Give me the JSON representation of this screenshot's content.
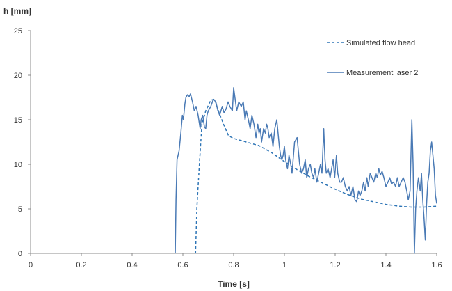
{
  "chart_data": {
    "type": "line",
    "xlabel": "Time [s]",
    "ylabel": "h [mm]",
    "xlim": [
      0,
      1.6
    ],
    "ylim": [
      0,
      25
    ],
    "x_ticks": [
      "0",
      "0.2",
      "0.4",
      "0.6",
      "0.8",
      "1",
      "1.2",
      "1.4",
      "1.6"
    ],
    "y_ticks": [
      "0",
      "5",
      "10",
      "15",
      "20",
      "25"
    ],
    "grid": false,
    "legend_position": "top-right",
    "series": [
      {
        "name": "Simulated flow head",
        "style": "dashed",
        "color": "#2e75b6",
        "points": [
          [
            0.65,
            0.0
          ],
          [
            0.655,
            5.0
          ],
          [
            0.665,
            10.0
          ],
          [
            0.675,
            14.5
          ],
          [
            0.69,
            16.0
          ],
          [
            0.71,
            17.2
          ],
          [
            0.725,
            17.3
          ],
          [
            0.74,
            16.0
          ],
          [
            0.76,
            14.5
          ],
          [
            0.78,
            13.2
          ],
          [
            0.8,
            12.9
          ],
          [
            0.85,
            12.5
          ],
          [
            0.9,
            12.1
          ],
          [
            0.95,
            11.3
          ],
          [
            1.0,
            10.3
          ],
          [
            1.05,
            9.4
          ],
          [
            1.1,
            8.6
          ],
          [
            1.15,
            7.9
          ],
          [
            1.2,
            7.2
          ],
          [
            1.25,
            6.6
          ],
          [
            1.3,
            6.1
          ],
          [
            1.35,
            5.8
          ],
          [
            1.4,
            5.5
          ],
          [
            1.45,
            5.3
          ],
          [
            1.5,
            5.2
          ],
          [
            1.55,
            5.2
          ],
          [
            1.6,
            5.3
          ]
        ]
      },
      {
        "name": "Measurement laser 2",
        "style": "solid",
        "color": "#4a7ab5",
        "points": [
          [
            0.57,
            0.0
          ],
          [
            0.573,
            6.0
          ],
          [
            0.577,
            10.5
          ],
          [
            0.585,
            11.5
          ],
          [
            0.592,
            13.5
          ],
          [
            0.598,
            15.5
          ],
          [
            0.602,
            15.0
          ],
          [
            0.608,
            16.8
          ],
          [
            0.612,
            17.5
          ],
          [
            0.618,
            17.8
          ],
          [
            0.625,
            17.6
          ],
          [
            0.63,
            17.9
          ],
          [
            0.638,
            17.0
          ],
          [
            0.645,
            16.0
          ],
          [
            0.652,
            16.5
          ],
          [
            0.66,
            15.5
          ],
          [
            0.668,
            14.0
          ],
          [
            0.672,
            15.0
          ],
          [
            0.678,
            15.5
          ],
          [
            0.685,
            14.2
          ],
          [
            0.69,
            14.0
          ],
          [
            0.695,
            15.5
          ],
          [
            0.7,
            16.0
          ],
          [
            0.71,
            16.5
          ],
          [
            0.72,
            17.3
          ],
          [
            0.73,
            17.0
          ],
          [
            0.738,
            16.0
          ],
          [
            0.745,
            15.5
          ],
          [
            0.755,
            16.5
          ],
          [
            0.762,
            15.8
          ],
          [
            0.77,
            16.2
          ],
          [
            0.778,
            17.0
          ],
          [
            0.785,
            16.5
          ],
          [
            0.795,
            16.0
          ],
          [
            0.8,
            18.6
          ],
          [
            0.805,
            17.5
          ],
          [
            0.812,
            16.0
          ],
          [
            0.82,
            17.0
          ],
          [
            0.83,
            16.5
          ],
          [
            0.838,
            17.0
          ],
          [
            0.845,
            15.0
          ],
          [
            0.85,
            16.0
          ],
          [
            0.858,
            15.0
          ],
          [
            0.865,
            14.0
          ],
          [
            0.872,
            15.5
          ],
          [
            0.88,
            14.5
          ],
          [
            0.888,
            13.0
          ],
          [
            0.895,
            14.5
          ],
          [
            0.9,
            13.5
          ],
          [
            0.905,
            14.0
          ],
          [
            0.91,
            12.5
          ],
          [
            0.918,
            14.0
          ],
          [
            0.925,
            13.5
          ],
          [
            0.93,
            14.5
          ],
          [
            0.935,
            14.0
          ],
          [
            0.94,
            13.0
          ],
          [
            0.948,
            13.5
          ],
          [
            0.955,
            12.0
          ],
          [
            0.962,
            14.0
          ],
          [
            0.97,
            15.0
          ],
          [
            0.975,
            13.5
          ],
          [
            0.98,
            12.0
          ],
          [
            0.985,
            11.0
          ],
          [
            0.99,
            10.5
          ],
          [
            0.995,
            11.0
          ],
          [
            1.0,
            12.0
          ],
          [
            1.005,
            10.5
          ],
          [
            1.012,
            9.5
          ],
          [
            1.018,
            11.0
          ],
          [
            1.025,
            10.0
          ],
          [
            1.03,
            9.0
          ],
          [
            1.04,
            12.5
          ],
          [
            1.05,
            13.0
          ],
          [
            1.055,
            11.5
          ],
          [
            1.06,
            10.0
          ],
          [
            1.068,
            9.0
          ],
          [
            1.075,
            9.5
          ],
          [
            1.082,
            10.5
          ],
          [
            1.088,
            8.5
          ],
          [
            1.095,
            9.5
          ],
          [
            1.102,
            10.0
          ],
          [
            1.108,
            9.0
          ],
          [
            1.115,
            8.5
          ],
          [
            1.12,
            9.5
          ],
          [
            1.128,
            8.0
          ],
          [
            1.135,
            9.0
          ],
          [
            1.142,
            10.0
          ],
          [
            1.148,
            9.0
          ],
          [
            1.155,
            14.0
          ],
          [
            1.16,
            10.5
          ],
          [
            1.165,
            9.0
          ],
          [
            1.172,
            9.5
          ],
          [
            1.18,
            8.5
          ],
          [
            1.186,
            9.5
          ],
          [
            1.192,
            10.5
          ],
          [
            1.198,
            8.5
          ],
          [
            1.205,
            11.0
          ],
          [
            1.21,
            9.0
          ],
          [
            1.218,
            8.0
          ],
          [
            1.225,
            8.0
          ],
          [
            1.232,
            8.5
          ],
          [
            1.24,
            7.5
          ],
          [
            1.248,
            7.0
          ],
          [
            1.255,
            7.5
          ],
          [
            1.262,
            6.5
          ],
          [
            1.27,
            7.5
          ],
          [
            1.278,
            6.0
          ],
          [
            1.285,
            5.8
          ],
          [
            1.292,
            7.0
          ],
          [
            1.298,
            6.5
          ],
          [
            1.305,
            7.0
          ],
          [
            1.312,
            8.0
          ],
          [
            1.318,
            7.0
          ],
          [
            1.325,
            8.5
          ],
          [
            1.33,
            7.5
          ],
          [
            1.338,
            9.0
          ],
          [
            1.345,
            8.5
          ],
          [
            1.352,
            8.0
          ],
          [
            1.36,
            9.0
          ],
          [
            1.366,
            8.5
          ],
          [
            1.372,
            9.5
          ],
          [
            1.378,
            8.8
          ],
          [
            1.385,
            9.2
          ],
          [
            1.392,
            8.5
          ],
          [
            1.4,
            7.5
          ],
          [
            1.408,
            8.0
          ],
          [
            1.415,
            8.5
          ],
          [
            1.422,
            7.8
          ],
          [
            1.43,
            8.0
          ],
          [
            1.438,
            7.5
          ],
          [
            1.445,
            8.5
          ],
          [
            1.452,
            7.5
          ],
          [
            1.46,
            8.0
          ],
          [
            1.468,
            8.5
          ],
          [
            1.475,
            8.0
          ],
          [
            1.482,
            7.0
          ],
          [
            1.488,
            6.0
          ],
          [
            1.495,
            7.0
          ],
          [
            1.502,
            15.0
          ],
          [
            1.507,
            10.0
          ],
          [
            1.512,
            0.0
          ],
          [
            1.517,
            5.0
          ],
          [
            1.522,
            7.0
          ],
          [
            1.528,
            8.5
          ],
          [
            1.535,
            7.0
          ],
          [
            1.54,
            9.0
          ],
          [
            1.545,
            6.0
          ],
          [
            1.55,
            4.0
          ],
          [
            1.555,
            1.5
          ],
          [
            1.56,
            5.5
          ],
          [
            1.565,
            8.0
          ],
          [
            1.57,
            9.0
          ],
          [
            1.575,
            11.5
          ],
          [
            1.58,
            12.5
          ],
          [
            1.585,
            11.0
          ],
          [
            1.59,
            9.5
          ],
          [
            1.595,
            6.5
          ],
          [
            1.6,
            5.6
          ]
        ]
      }
    ]
  }
}
